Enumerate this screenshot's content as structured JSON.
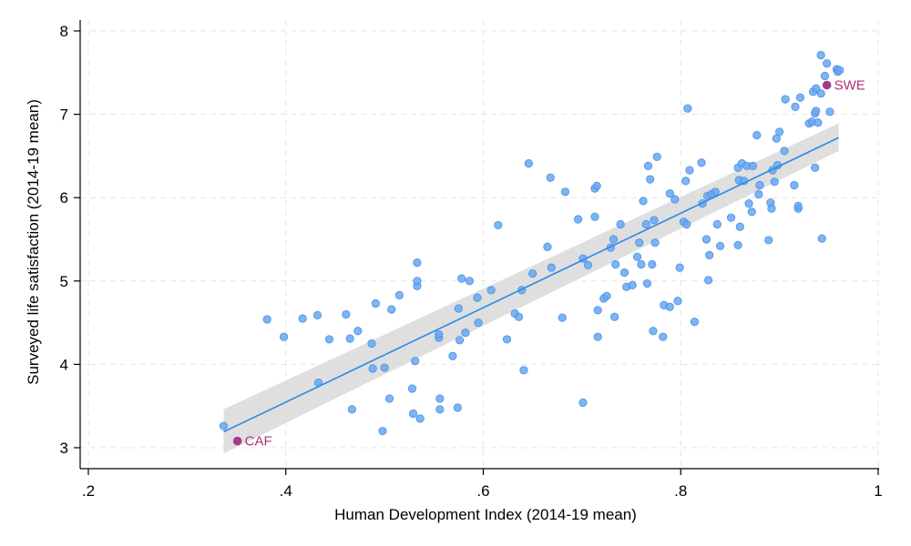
{
  "chart_data": {
    "type": "scatter",
    "title": "",
    "xlabel": "Human Development Index (2014-19 mean)",
    "ylabel": "Surveyed life satisfaction (2014-19 mean)",
    "xlim": [
      0.2,
      1.0
    ],
    "ylim": [
      3,
      8
    ],
    "xticks": [
      0.2,
      0.4,
      0.6,
      0.8,
      1.0
    ],
    "xtick_labels": [
      ".2",
      ".4",
      ".6",
      ".8",
      "1"
    ],
    "yticks": [
      3,
      4,
      5,
      6,
      7,
      8
    ],
    "ytick_labels": [
      "3",
      "4",
      "5",
      "6",
      "7",
      "8"
    ],
    "grid": true,
    "colors": {
      "points": "#66a7f5",
      "points_edge": "#4d8fe0",
      "fit_line": "#2b8ae6",
      "ci_band": "#d9d9d9",
      "highlight": "#a33a8c",
      "highlight_text": "#b5306f",
      "grid": "#e6e6e6",
      "axis": "#000000"
    },
    "fit": {
      "x": [
        0.337,
        0.96
      ],
      "y": [
        3.19,
        6.72
      ],
      "ci_lower": [
        2.93,
        6.56
      ],
      "ci_upper": [
        3.46,
        6.89
      ]
    },
    "highlights": [
      {
        "label": "CAF",
        "x": 0.351,
        "y": 3.08
      },
      {
        "label": "SWE",
        "x": 0.948,
        "y": 7.35
      }
    ],
    "points": [
      [
        0.337,
        3.26
      ],
      [
        0.381,
        4.54
      ],
      [
        0.398,
        4.33
      ],
      [
        0.417,
        4.55
      ],
      [
        0.432,
        4.59
      ],
      [
        0.433,
        3.78
      ],
      [
        0.444,
        4.3
      ],
      [
        0.461,
        4.6
      ],
      [
        0.465,
        4.31
      ],
      [
        0.467,
        3.46
      ],
      [
        0.473,
        4.4
      ],
      [
        0.487,
        4.25
      ],
      [
        0.488,
        3.95
      ],
      [
        0.491,
        4.73
      ],
      [
        0.498,
        3.2
      ],
      [
        0.5,
        3.96
      ],
      [
        0.505,
        3.59
      ],
      [
        0.507,
        4.66
      ],
      [
        0.515,
        4.83
      ],
      [
        0.528,
        3.71
      ],
      [
        0.529,
        3.41
      ],
      [
        0.531,
        4.04
      ],
      [
        0.533,
        4.94
      ],
      [
        0.533,
        5.0
      ],
      [
        0.533,
        5.22
      ],
      [
        0.536,
        3.35
      ],
      [
        0.555,
        4.32
      ],
      [
        0.555,
        4.36
      ],
      [
        0.556,
        3.46
      ],
      [
        0.556,
        3.59
      ],
      [
        0.569,
        4.1
      ],
      [
        0.574,
        3.48
      ],
      [
        0.575,
        4.67
      ],
      [
        0.576,
        4.29
      ],
      [
        0.578,
        5.03
      ],
      [
        0.582,
        4.38
      ],
      [
        0.586,
        5.0
      ],
      [
        0.594,
        4.8
      ],
      [
        0.595,
        4.5
      ],
      [
        0.608,
        4.89
      ],
      [
        0.615,
        5.67
      ],
      [
        0.624,
        4.3
      ],
      [
        0.632,
        4.61
      ],
      [
        0.636,
        4.57
      ],
      [
        0.639,
        4.89
      ],
      [
        0.641,
        3.93
      ],
      [
        0.646,
        6.41
      ],
      [
        0.65,
        5.09
      ],
      [
        0.665,
        5.41
      ],
      [
        0.668,
        6.24
      ],
      [
        0.669,
        5.16
      ],
      [
        0.68,
        4.56
      ],
      [
        0.683,
        6.07
      ],
      [
        0.696,
        5.74
      ],
      [
        0.701,
        3.54
      ],
      [
        0.701,
        5.27
      ],
      [
        0.706,
        5.19
      ],
      [
        0.713,
        5.77
      ],
      [
        0.713,
        6.11
      ],
      [
        0.715,
        6.14
      ],
      [
        0.716,
        4.33
      ],
      [
        0.716,
        4.65
      ],
      [
        0.722,
        4.79
      ],
      [
        0.725,
        4.82
      ],
      [
        0.729,
        5.4
      ],
      [
        0.732,
        5.5
      ],
      [
        0.733,
        4.57
      ],
      [
        0.734,
        5.2
      ],
      [
        0.739,
        5.68
      ],
      [
        0.743,
        5.1
      ],
      [
        0.745,
        4.93
      ],
      [
        0.751,
        4.95
      ],
      [
        0.756,
        5.29
      ],
      [
        0.758,
        5.46
      ],
      [
        0.76,
        5.2
      ],
      [
        0.762,
        5.96
      ],
      [
        0.765,
        5.68
      ],
      [
        0.766,
        4.97
      ],
      [
        0.767,
        6.38
      ],
      [
        0.769,
        6.22
      ],
      [
        0.771,
        5.2
      ],
      [
        0.772,
        4.4
      ],
      [
        0.773,
        5.73
      ],
      [
        0.774,
        5.46
      ],
      [
        0.776,
        6.49
      ],
      [
        0.782,
        4.33
      ],
      [
        0.783,
        4.71
      ],
      [
        0.789,
        4.69
      ],
      [
        0.789,
        6.05
      ],
      [
        0.794,
        5.98
      ],
      [
        0.797,
        4.76
      ],
      [
        0.799,
        5.16
      ],
      [
        0.803,
        5.71
      ],
      [
        0.806,
        5.68
      ],
      [
        0.807,
        7.07
      ],
      [
        0.805,
        6.2
      ],
      [
        0.809,
        6.33
      ],
      [
        0.814,
        4.51
      ],
      [
        0.821,
        6.42
      ],
      [
        0.822,
        5.93
      ],
      [
        0.826,
        5.5
      ],
      [
        0.827,
        6.02
      ],
      [
        0.828,
        5.01
      ],
      [
        0.829,
        5.31
      ],
      [
        0.831,
        6.04
      ],
      [
        0.835,
        6.07
      ],
      [
        0.837,
        5.68
      ],
      [
        0.84,
        5.42
      ],
      [
        0.851,
        5.76
      ],
      [
        0.858,
        5.43
      ],
      [
        0.858,
        6.36
      ],
      [
        0.859,
        6.21
      ],
      [
        0.86,
        5.65
      ],
      [
        0.862,
        6.41
      ],
      [
        0.864,
        6.2
      ],
      [
        0.867,
        6.38
      ],
      [
        0.869,
        5.93
      ],
      [
        0.872,
        5.83
      ],
      [
        0.873,
        6.38
      ],
      [
        0.877,
        6.75
      ],
      [
        0.879,
        6.04
      ],
      [
        0.88,
        6.15
      ],
      [
        0.889,
        5.49
      ],
      [
        0.891,
        5.94
      ],
      [
        0.892,
        5.87
      ],
      [
        0.893,
        6.33
      ],
      [
        0.895,
        6.19
      ],
      [
        0.897,
        6.71
      ],
      [
        0.898,
        6.39
      ],
      [
        0.9,
        6.79
      ],
      [
        0.905,
        6.56
      ],
      [
        0.906,
        7.18
      ],
      [
        0.915,
        6.15
      ],
      [
        0.916,
        7.09
      ],
      [
        0.919,
        5.87
      ],
      [
        0.919,
        5.9
      ],
      [
        0.921,
        7.2
      ],
      [
        0.93,
        6.89
      ],
      [
        0.933,
        6.91
      ],
      [
        0.934,
        7.27
      ],
      [
        0.936,
        6.36
      ],
      [
        0.936,
        7.01
      ],
      [
        0.937,
        7.04
      ],
      [
        0.937,
        7.31
      ],
      [
        0.939,
        6.9
      ],
      [
        0.942,
        7.25
      ],
      [
        0.942,
        7.71
      ],
      [
        0.943,
        5.51
      ],
      [
        0.946,
        7.46
      ],
      [
        0.948,
        7.61
      ],
      [
        0.951,
        7.03
      ],
      [
        0.958,
        7.54
      ],
      [
        0.959,
        7.51
      ],
      [
        0.961,
        7.53
      ]
    ]
  }
}
